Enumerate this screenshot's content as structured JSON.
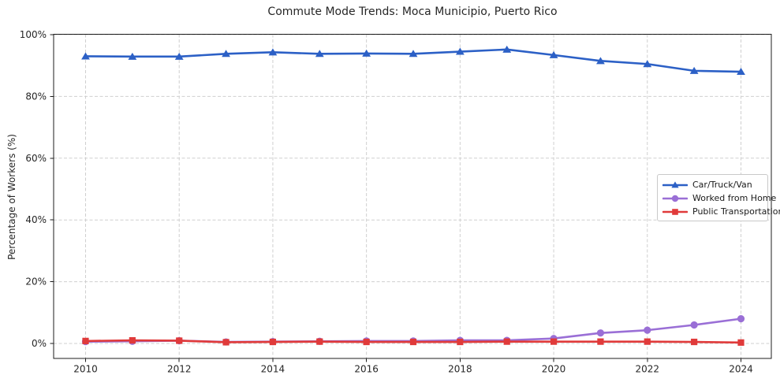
{
  "page": {
    "background": "#ffffff"
  },
  "chart_data": {
    "type": "line",
    "title": "Commute Mode Trends: Moca Municipio, Puerto Rico",
    "xlabel": "",
    "ylabel": "Percentage of Workers (%)",
    "x": [
      2010,
      2011,
      2012,
      2013,
      2014,
      2015,
      2016,
      2017,
      2018,
      2019,
      2020,
      2021,
      2022,
      2023,
      2024
    ],
    "xticks": [
      2010,
      2012,
      2014,
      2016,
      2018,
      2020,
      2022,
      2024
    ],
    "xtick_labels": [
      "2010",
      "2012",
      "2014",
      "2016",
      "2018",
      "2020",
      "2022",
      "2024"
    ],
    "yticks": [
      0,
      20,
      40,
      60,
      80,
      100
    ],
    "ytick_labels": [
      "0%",
      "20%",
      "40%",
      "60%",
      "80%",
      "100%"
    ],
    "xlim": [
      2009.32,
      2024.65
    ],
    "ylim": [
      -5,
      100.1
    ],
    "grid": true,
    "grid_style": "dashed",
    "legend_position": "center-right",
    "series": [
      {
        "name": "Car/Truck/Van",
        "color": "#2c60c6",
        "marker": "triangle",
        "values": [
          93.0,
          92.9,
          92.9,
          93.8,
          94.3,
          93.8,
          93.9,
          93.8,
          94.5,
          95.2,
          93.4,
          91.5,
          90.5,
          88.3,
          88.0
        ]
      },
      {
        "name": "Worked from Home",
        "color": "#9a6fd6",
        "marker": "circle",
        "values": [
          0.6,
          0.7,
          0.9,
          0.5,
          0.6,
          0.7,
          0.8,
          0.8,
          1.0,
          1.0,
          1.6,
          3.4,
          4.3,
          6.0,
          8.0
        ]
      },
      {
        "name": "Public Transportation",
        "color": "#e03a3a",
        "marker": "square",
        "values": [
          0.8,
          1.0,
          0.9,
          0.4,
          0.5,
          0.6,
          0.5,
          0.5,
          0.5,
          0.6,
          0.6,
          0.6,
          0.6,
          0.5,
          0.3
        ]
      }
    ],
    "style": {
      "grid_color": "#cfcfcf",
      "spine_color": "#1c1c1c",
      "tick_label_color": "#262626"
    }
  }
}
